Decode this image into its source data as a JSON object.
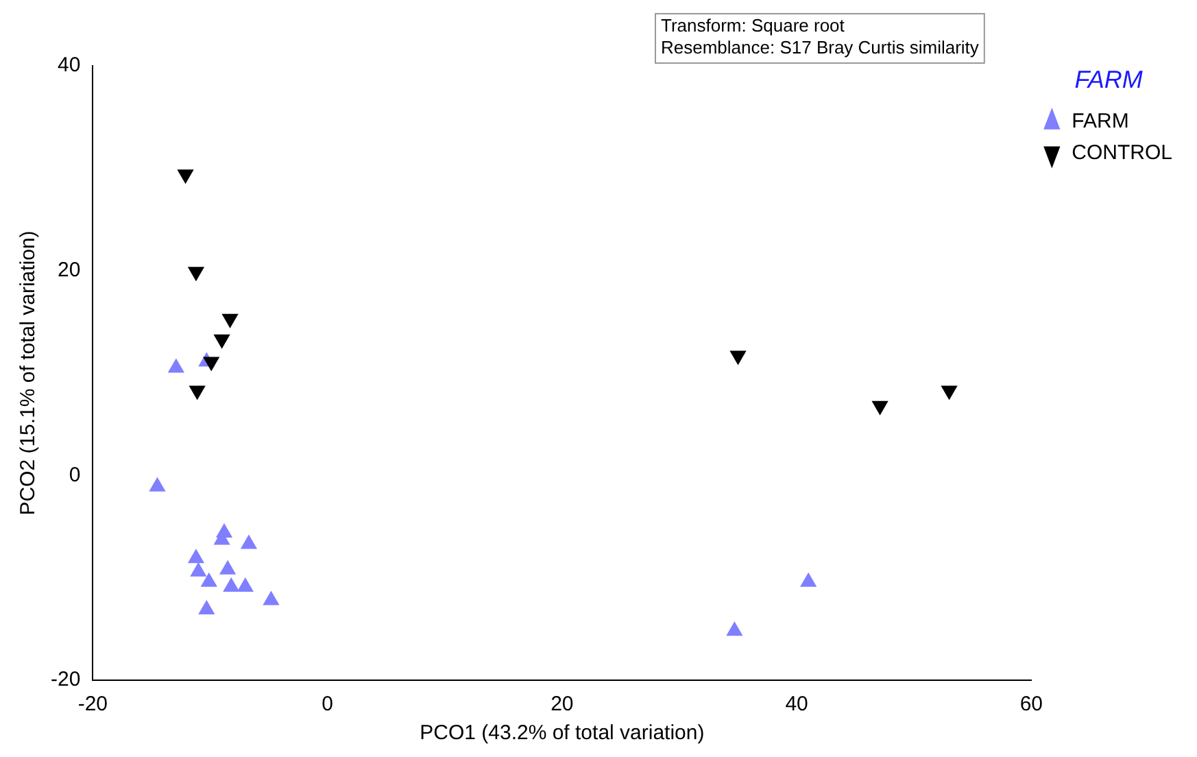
{
  "chart_data": {
    "type": "scatter",
    "xlabel": "PCO1 (43.2% of total variation)",
    "ylabel": "PCO2 (15.1% of total variation)",
    "legend_title": "FARM",
    "annotations": [
      "Transform: Square root",
      "Resemblance: S17 Bray Curtis similarity"
    ],
    "xlim": [
      -20,
      60
    ],
    "xticks": [
      -20,
      0,
      20,
      40,
      60
    ],
    "ylim": [
      -20,
      40
    ],
    "yticks": [
      -20,
      0,
      20,
      40
    ],
    "grid": false,
    "legend": "top right",
    "series": [
      {
        "name": "FARM",
        "color": "#7f7fff",
        "marker": "triangle",
        "x": [
          -12.9,
          -10.3,
          -14.5,
          -8.8,
          -9.0,
          -6.7,
          -11.2,
          -11.0,
          -8.5,
          -10.1,
          -8.2,
          -7.0,
          -4.8,
          -10.3,
          34.7,
          41.0
        ],
        "values": [
          10.5,
          11.1,
          -1.1,
          -5.6,
          -6.3,
          -6.7,
          -8.1,
          -9.4,
          -9.2,
          -10.4,
          -10.9,
          -10.9,
          -12.2,
          -13.1,
          -15.2,
          -10.4
        ]
      },
      {
        "name": "CONTROL",
        "color": "#000000",
        "marker": "triangle-down",
        "x": [
          -12.1,
          -11.2,
          -8.3,
          -9.0,
          -9.9,
          -11.1,
          35.0,
          47.1,
          53.0
        ],
        "values": [
          29.4,
          19.9,
          15.3,
          13.3,
          11.1,
          8.3,
          11.7,
          6.8,
          8.3
        ]
      }
    ]
  }
}
